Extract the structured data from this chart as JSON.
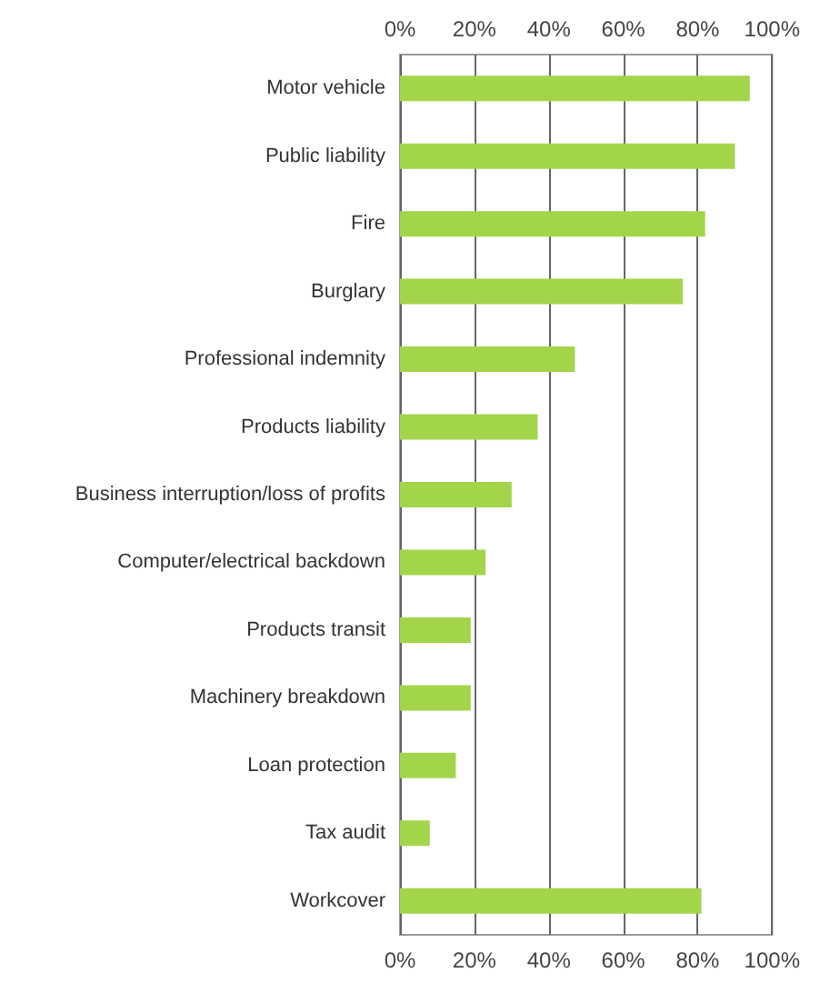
{
  "chart_data": {
    "type": "bar",
    "orientation": "horizontal",
    "categories": [
      "Motor vehicle",
      "Public liability",
      "Fire",
      "Burglary",
      "Professional indemnity",
      "Products liability",
      "Business interruption/loss of profits",
      "Computer/electrical backdown",
      "Products transit",
      "Machinery breakdown",
      "Loan protection",
      "Tax audit",
      "Workcover"
    ],
    "values": [
      94,
      90,
      82,
      76,
      47,
      37,
      30,
      23,
      19,
      19,
      15,
      8,
      81
    ],
    "color": "#a3d54a",
    "xlim": [
      0,
      100
    ],
    "xticks": [
      {
        "value": 0,
        "label": "0%"
      },
      {
        "value": 20,
        "label": "20%"
      },
      {
        "value": 40,
        "label": "40%"
      },
      {
        "value": 60,
        "label": "60%"
      },
      {
        "value": 80,
        "label": "80%"
      },
      {
        "value": 100,
        "label": "100%"
      }
    ],
    "x2lim": [
      0,
      100
    ],
    "x2ticks": [
      {
        "value": 0,
        "label": "0%"
      },
      {
        "value": 20,
        "label": "20%"
      },
      {
        "value": 40,
        "label": "40%"
      },
      {
        "value": 60,
        "label": "60%"
      },
      {
        "value": 80,
        "label": "80%"
      },
      {
        "value": 100,
        "label": "100%"
      }
    ],
    "grid": "x"
  }
}
